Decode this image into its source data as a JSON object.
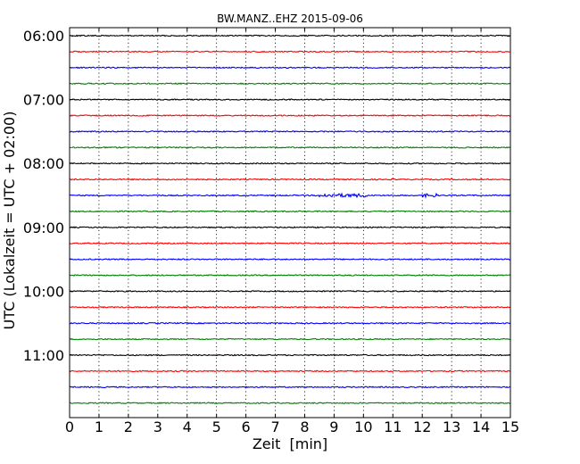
{
  "chart_data": {
    "type": "line",
    "title": "BW.MANZ..EHZ 2015-09-06",
    "xlabel": "Zeit  [min]",
    "ylabel": "UTC (Lokalzeit = UTC + 02:00)",
    "xlim": [
      0,
      15
    ],
    "x_ticks": [
      "0",
      "1",
      "2",
      "3",
      "4",
      "5",
      "6",
      "7",
      "8",
      "9",
      "10",
      "11",
      "12",
      "13",
      "14",
      "15"
    ],
    "y_tick_labels": [
      "06:00",
      "07:00",
      "08:00",
      "09:00",
      "10:00",
      "11:00"
    ],
    "grid": "vertical dotted lines at each minute",
    "trace_start_times": [
      "06:00",
      "06:15",
      "06:30",
      "06:45",
      "07:00",
      "07:15",
      "07:30",
      "07:45",
      "08:00",
      "08:15",
      "08:30",
      "08:45",
      "09:00",
      "09:15",
      "09:30",
      "09:45",
      "10:00",
      "10:15",
      "10:30",
      "10:45",
      "11:00",
      "11:15",
      "11:30",
      "11:45"
    ],
    "trace_color_cycle": [
      "#000000",
      "#ff0000",
      "#0000ff",
      "#008000"
    ],
    "events": [
      {
        "trace_start": "08:30",
        "from_min": 8.5,
        "to_min": 10.2,
        "level": "small"
      },
      {
        "trace_start": "08:30",
        "from_min": 12.0,
        "to_min": 12.5,
        "level": "small"
      }
    ]
  }
}
